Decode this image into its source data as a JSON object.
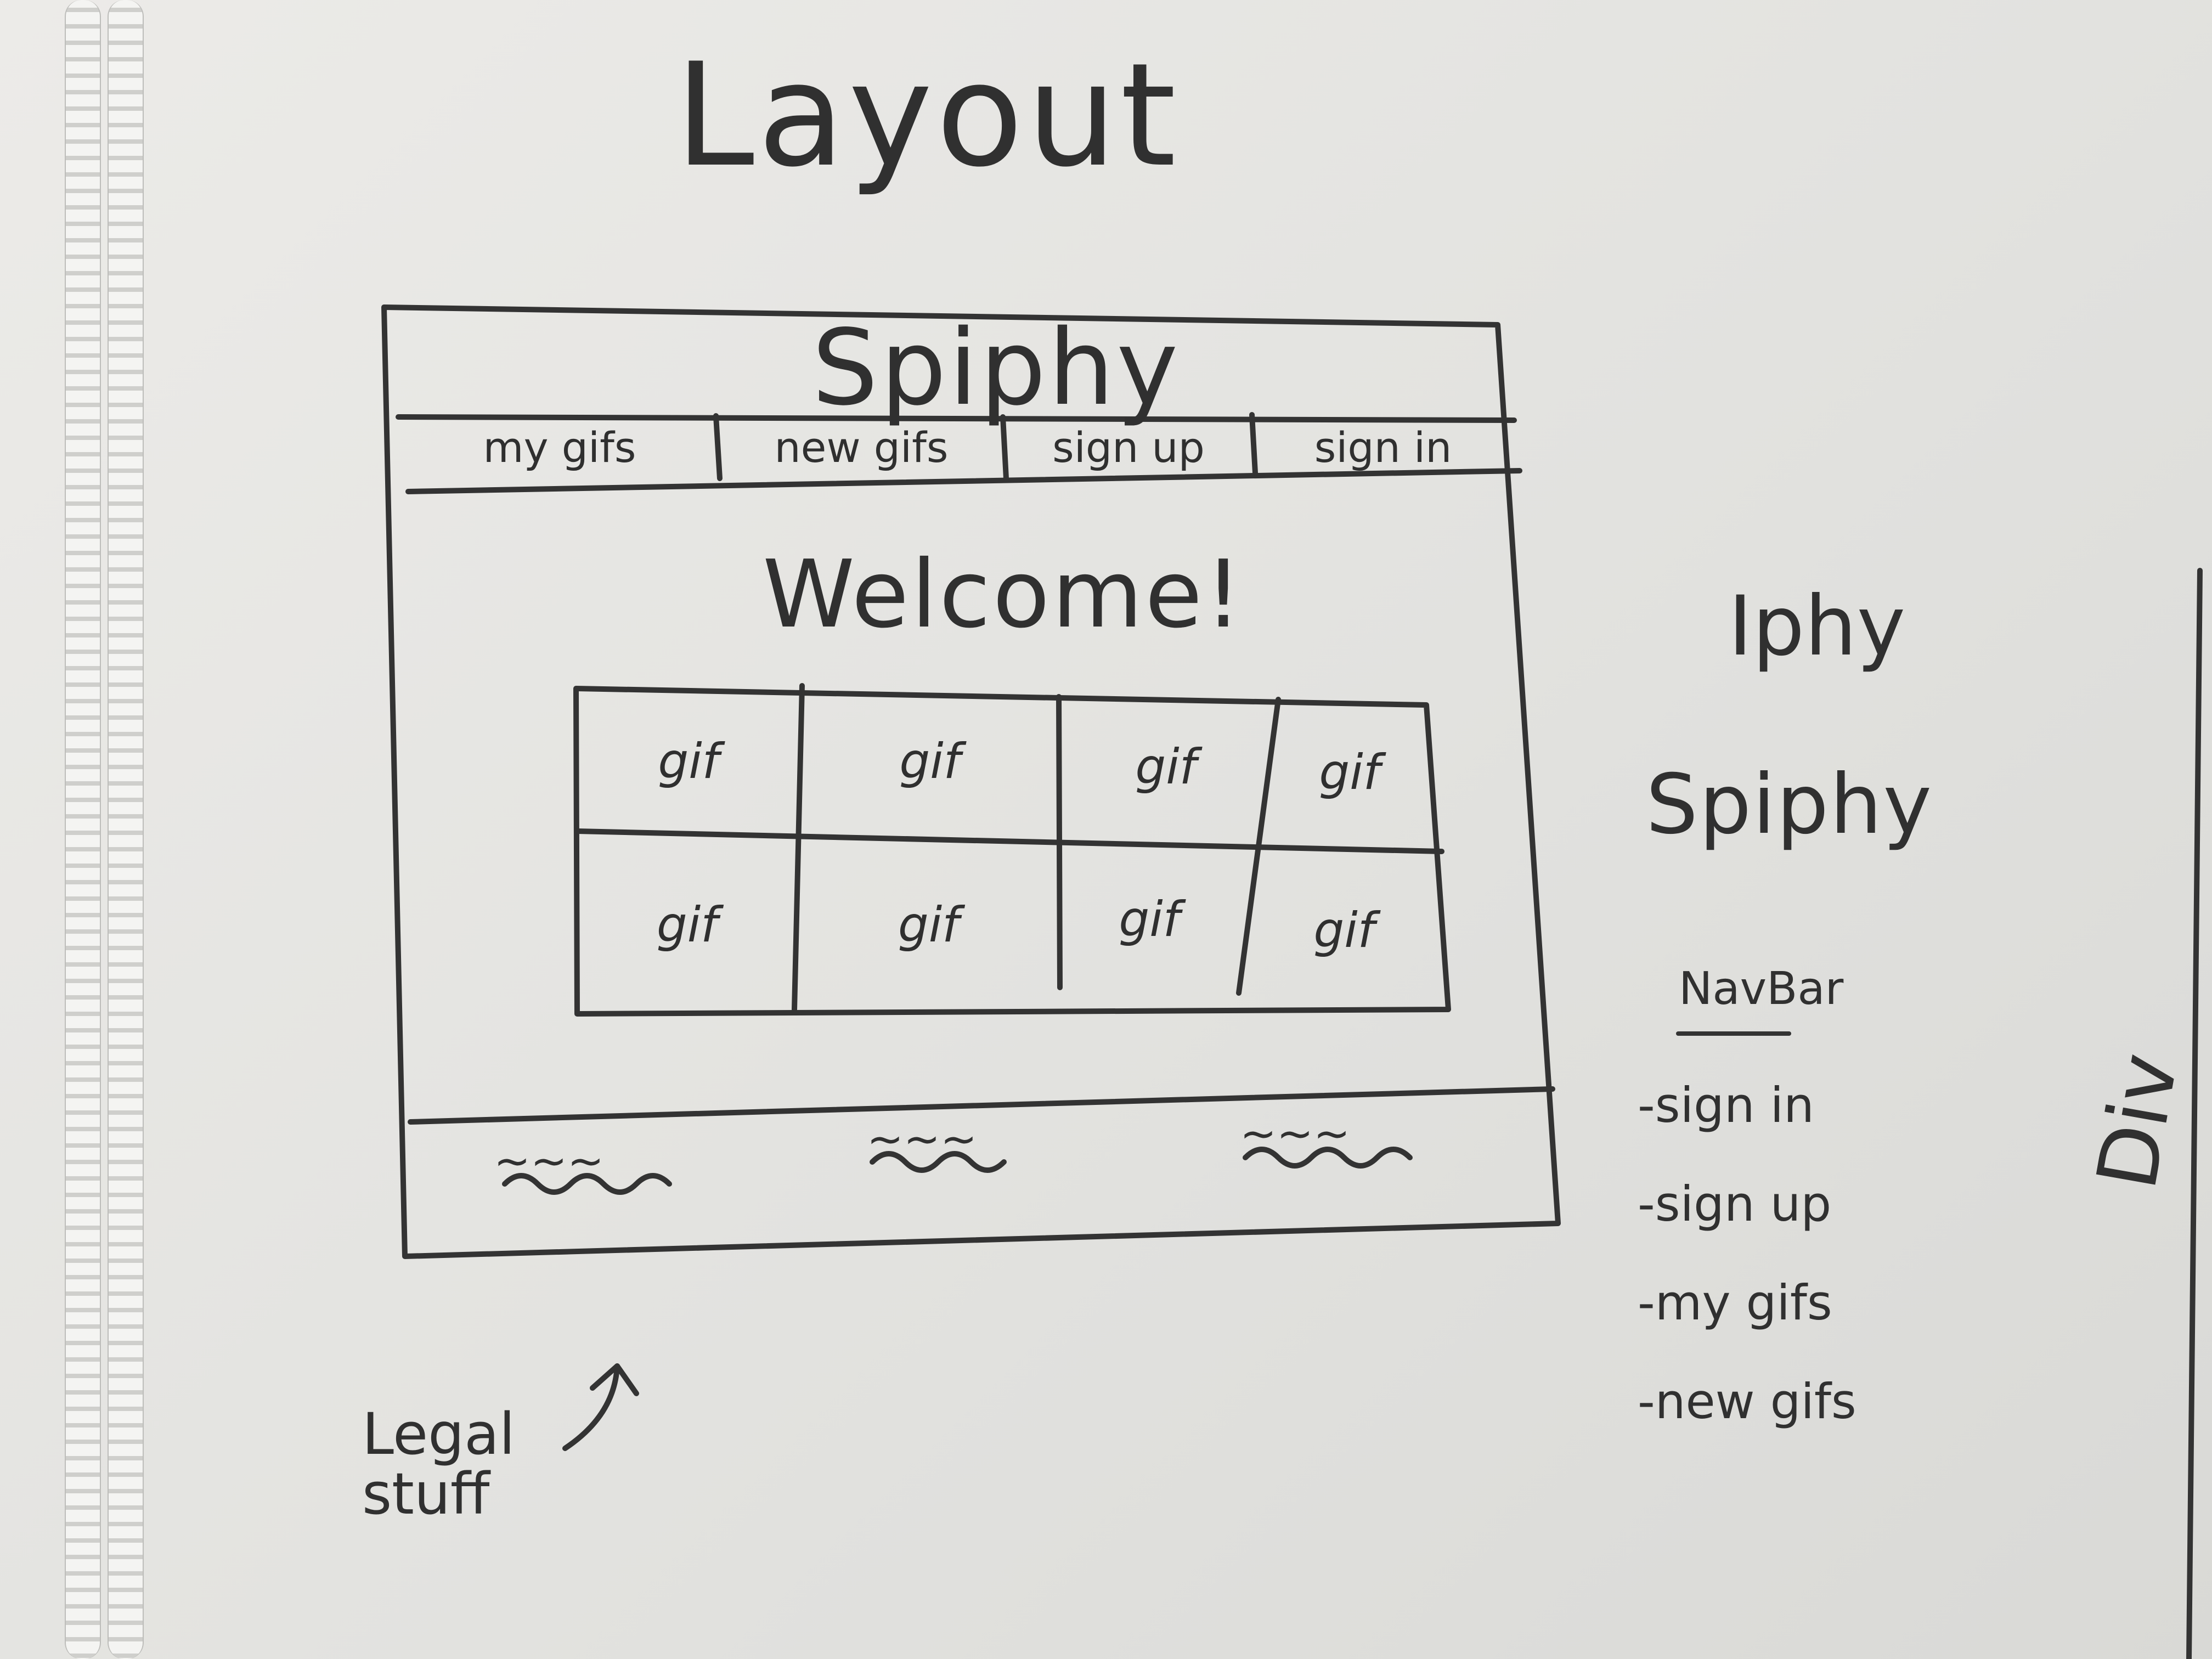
{
  "whiteboard": {
    "title": "Layout",
    "wireframe": {
      "site_name": "Spiphy",
      "nav_items": [
        "my gifs",
        "new gifs",
        "sign up",
        "sign in"
      ],
      "welcome_text": "Welcome!",
      "gif_grid": [
        [
          "gif",
          "gif",
          "gif",
          "gif"
        ],
        [
          "gif",
          "gif",
          "gif",
          "gif"
        ]
      ],
      "footer_items": [
        "~~~",
        "~~~",
        "~~~"
      ]
    },
    "annotation": {
      "text": "Legal stuff"
    },
    "notes": {
      "name_ideas": [
        "Iphy",
        "Spiphy"
      ],
      "navbar_heading": "NavBar",
      "navbar_items": [
        "-sign in",
        "-sign up",
        "-my gifs",
        "-new gifs"
      ],
      "div_label": "Div"
    }
  }
}
